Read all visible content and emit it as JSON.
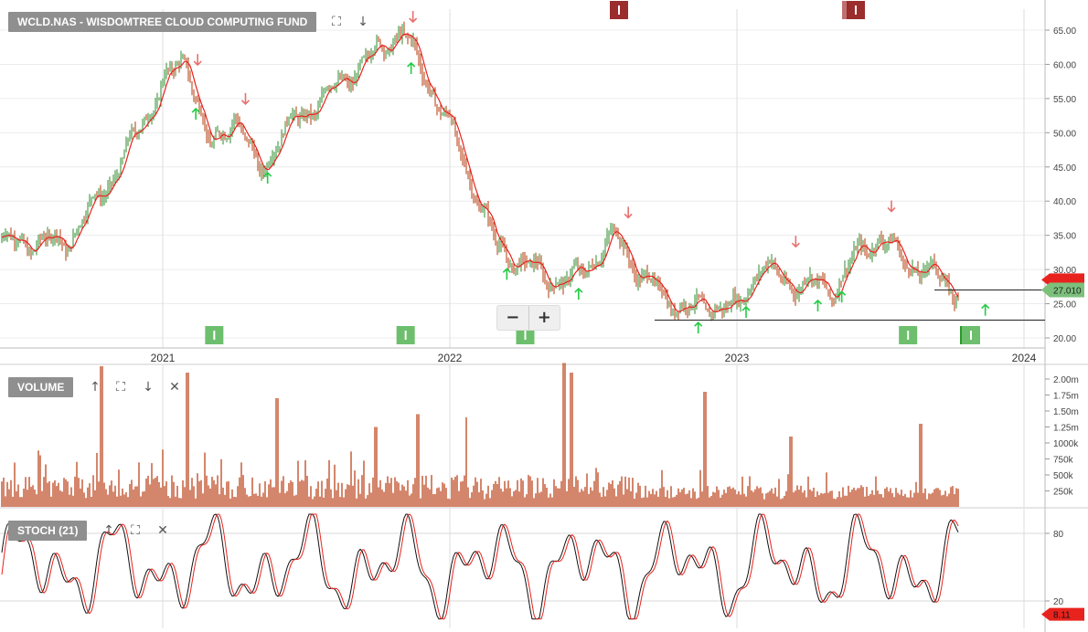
{
  "chart_data": [
    {
      "type": "candlestick",
      "title": "WCLD.NAS - WISDOMTREE CLOUD COMPUTING FUND",
      "x_ticks": [
        "2021",
        "2022",
        "2023",
        "2024"
      ],
      "y_ticks": [
        20,
        25,
        30,
        35,
        40,
        45,
        50,
        55,
        60,
        65
      ],
      "y_tick_labels": [
        "20.00",
        "25.00",
        "30.00",
        "35.00",
        "40.00",
        "45.00",
        "50.00",
        "55.00",
        "60.00",
        "65.00"
      ],
      "ylim": [
        18.5,
        68
      ],
      "last_price_label": "27.010",
      "last_price": 27.01,
      "moving_average_label_value": 28.5,
      "support_lines": [
        27.01,
        22.6
      ],
      "series": [
        {
          "name": "",
          "dates": [
            "2020-09",
            "2020-11",
            "2021-01",
            "2021-02",
            "2021-03",
            "2021-04",
            "2021-05",
            "2021-06",
            "2021-08",
            "2021-10",
            "2021-11",
            "2022-01",
            "2022-03",
            "2022-05",
            "2022-06",
            "2022-08",
            "2022-09",
            "2022-10",
            "2022-11",
            "2022-12",
            "2023-01",
            "2023-02",
            "2023-03",
            "2023-04",
            "2023-05",
            "2023-06",
            "2023-07",
            "2023-08",
            "2023-09",
            "2023-10"
          ],
          "close": [
            34,
            44,
            57,
            61,
            47,
            53,
            44,
            50,
            56,
            62,
            65,
            51,
            33,
            29,
            28,
            35,
            29,
            26,
            24,
            25,
            24,
            31,
            28,
            28,
            27,
            32,
            35,
            31,
            30,
            27
          ]
        }
      ],
      "buy_signals": [
        "2021-02",
        "2021-05",
        "2021-11",
        "2022-03",
        "2022-06",
        "2022-11",
        "2023-01",
        "2023-04",
        "2023-05",
        "2023-11"
      ],
      "sell_signals": [
        "2021-02",
        "2021-04",
        "2021-11",
        "2022-08",
        "2023-03",
        "2023-07"
      ]
    },
    {
      "type": "bar",
      "title": "VOLUME",
      "y_tick_labels": [
        "250k",
        "500k",
        "750k",
        "1000k",
        "1.25m",
        "1.50m",
        "1.75m",
        "2.00m"
      ],
      "y_ticks": [
        250000,
        500000,
        750000,
        1000000,
        1250000,
        1500000,
        1750000,
        2000000
      ],
      "ylim": [
        0,
        2250000
      ],
      "spikes": [
        {
          "date": "2020-10",
          "value": 2200000
        },
        {
          "date": "2021-02",
          "value": 2100000
        },
        {
          "date": "2021-05",
          "value": 1700000
        },
        {
          "date": "2021-09",
          "value": 1250000
        },
        {
          "date": "2021-11",
          "value": 1450000
        },
        {
          "date": "2022-01",
          "value": 1400000
        },
        {
          "date": "2022-05",
          "value": 2250000
        },
        {
          "date": "2022-06",
          "value": 2100000
        },
        {
          "date": "2022-11",
          "value": 1800000
        },
        {
          "date": "2023-03",
          "value": 1100000
        },
        {
          "date": "2023-08",
          "value": 1300000
        }
      ]
    },
    {
      "type": "line",
      "title": "STOCH (21)",
      "y_ticks": [
        20,
        80
      ],
      "ylim": [
        0,
        100
      ],
      "last_value_label": "8.11",
      "last_value": 8.11
    }
  ],
  "colors": {
    "up": "#2e8b2e",
    "down": "#b33a0a",
    "ma": "#e8231e",
    "volume": "#b8360a",
    "buy_arrow": "#22cc44",
    "sell_arrow": "#e87070",
    "marker_green": "#6dbf6d",
    "marker_red": "#9b2d2d",
    "stoch_k": "#111111",
    "stoch_d": "#e8231e",
    "tag_red": "#e8231e",
    "tag_green": "#7cc07c"
  },
  "toolbar": {
    "zoom_out": "−",
    "zoom_in": "+",
    "expand_icon": "⛶",
    "down_icon": "↓",
    "up_icon": "↑",
    "close_icon": "✕"
  }
}
